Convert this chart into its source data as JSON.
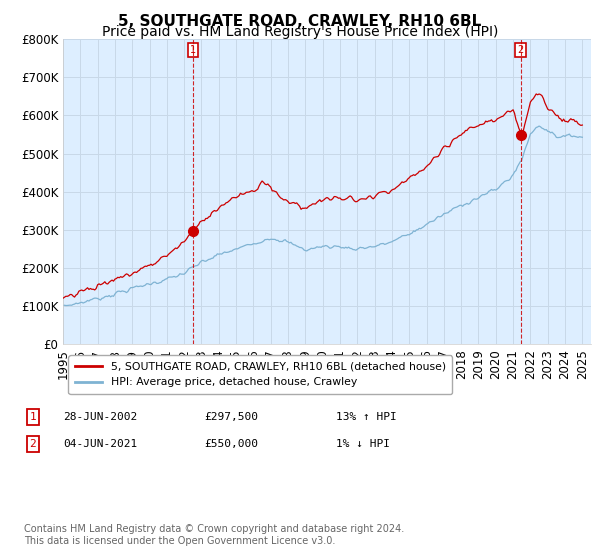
{
  "title": "5, SOUTHGATE ROAD, CRAWLEY, RH10 6BL",
  "subtitle": "Price paid vs. HM Land Registry's House Price Index (HPI)",
  "ylabel_ticks": [
    "£0",
    "£100K",
    "£200K",
    "£300K",
    "£400K",
    "£500K",
    "£600K",
    "£700K",
    "£800K"
  ],
  "ylim": [
    0,
    800000
  ],
  "xlim_start": 1995,
  "xlim_end": 2025.5,
  "sale1_date": 2002.49,
  "sale1_label": "1",
  "sale1_price": 297500,
  "sale2_date": 2021.43,
  "sale2_label": "2",
  "sale2_price": 550000,
  "line_color_red": "#cc0000",
  "line_color_blue": "#7fb3d3",
  "plot_bg_color": "#ddeeff",
  "legend_label_red": "5, SOUTHGATE ROAD, CRAWLEY, RH10 6BL (detached house)",
  "legend_label_blue": "HPI: Average price, detached house, Crawley",
  "footnote": "Contains HM Land Registry data © Crown copyright and database right 2024.\nThis data is licensed under the Open Government Licence v3.0.",
  "background_color": "#ffffff",
  "grid_color": "#c8d8e8",
  "title_fontsize": 11,
  "subtitle_fontsize": 10,
  "tick_fontsize": 8.5,
  "annotation_color_red": "#cc0000"
}
